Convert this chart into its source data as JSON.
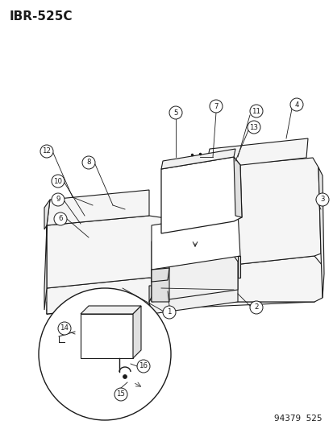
{
  "title_code": "IBR-525C",
  "footer_code": "94379  525",
  "bg_color": "#ffffff",
  "line_color": "#1a1a1a",
  "title_fontsize": 11,
  "footer_fontsize": 7.5,
  "callout_r": 8
}
